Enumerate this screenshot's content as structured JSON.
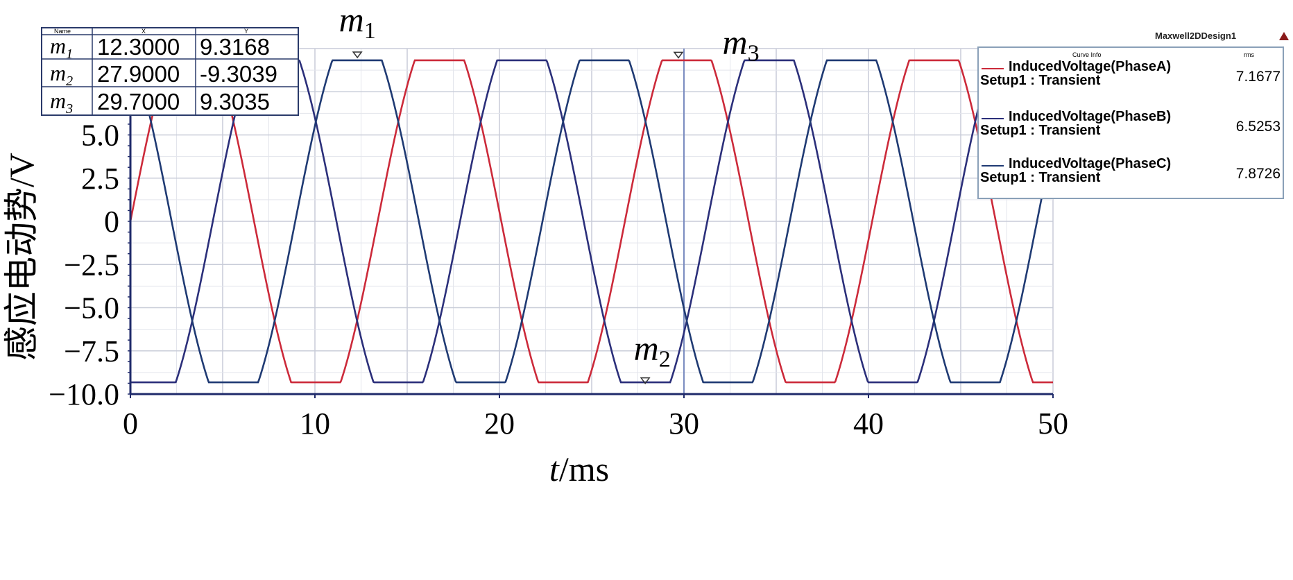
{
  "chart_data": {
    "type": "line",
    "xlabel_var": "t",
    "xlabel_unit": "/ms",
    "ylabel": "感应电动势/V",
    "xlim": [
      0,
      50
    ],
    "ylim": [
      -10,
      10
    ],
    "x_ticks": [
      0,
      10,
      20,
      30,
      40,
      50
    ],
    "y_ticks": [
      {
        "v": 5,
        "label": "5.0"
      },
      {
        "v": 2.5,
        "label": "2.5"
      },
      {
        "v": 0,
        "label": "0"
      },
      {
        "v": -2.5,
        "label": "−2.5"
      },
      {
        "v": -5,
        "label": "−5.0"
      },
      {
        "v": -7.5,
        "label": "−7.5"
      },
      {
        "v": -10,
        "label": "−10.0"
      }
    ],
    "grid": true,
    "waveform": {
      "period_ms": 13.4,
      "amplitude": 9.32,
      "flat_top_fraction": 0.2
    },
    "series": [
      {
        "name": "InducedVoltage(PhaseA)",
        "setup": "Setup1 : Transient",
        "rms": "7.1677",
        "color": "#cc2a3a",
        "phase_deg": 0
      },
      {
        "name": "InducedVoltage(PhaseB)",
        "setup": "Setup1 : Transient",
        "rms": "6.5253",
        "color": "#2b2f7a",
        "phase_deg": -120
      },
      {
        "name": "InducedVoltage(PhaseC)",
        "setup": "Setup1 : Transient",
        "rms": "7.8726",
        "color": "#1f3a73",
        "phase_deg": 120
      }
    ],
    "markers": [
      {
        "name": "m",
        "sub": "1",
        "x": 12.3,
        "y": 9.3168,
        "x_text": "12.3000",
        "y_text": "9.3168"
      },
      {
        "name": "m",
        "sub": "2",
        "x": 27.9,
        "y": -9.3039,
        "x_text": "27.9000",
        "y_text": "-9.3039"
      },
      {
        "name": "m",
        "sub": "3",
        "x": 29.7,
        "y": 9.3035,
        "x_text": "29.7000",
        "y_text": "9.3035"
      }
    ],
    "marker_table": {
      "head_name": "Name",
      "head_x": "X",
      "head_y": "Y"
    },
    "legend": {
      "header": "Curve Info",
      "header_value": "rms",
      "design": "Maxwell2DDesign1"
    }
  }
}
